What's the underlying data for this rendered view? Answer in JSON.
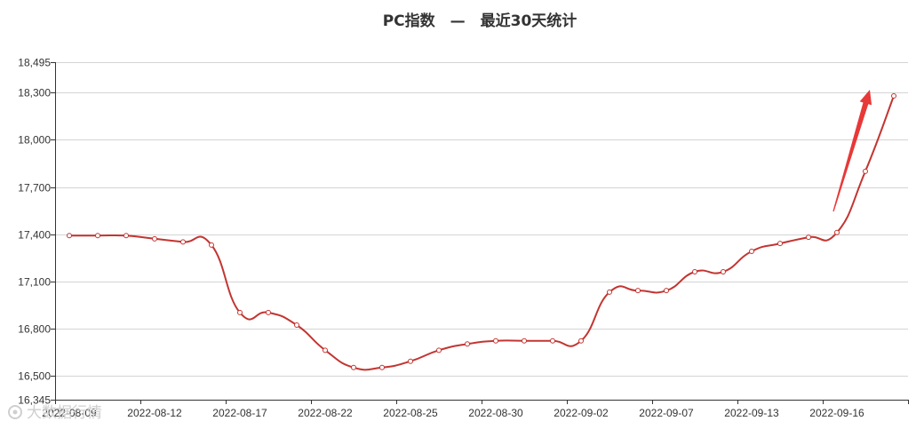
{
  "chart_data": {
    "type": "line",
    "title": "PC指数　—　最近30天统计",
    "xlabel": "",
    "ylabel": "",
    "ylim": [
      16345,
      18495
    ],
    "y_ticks": [
      16345,
      16500,
      16800,
      17100,
      17400,
      17700,
      18000,
      18300,
      18495
    ],
    "y_tick_labels": [
      "16,345",
      "16,500",
      "16,800",
      "17,100",
      "17,400",
      "17,700",
      "18,000",
      "18,300",
      "18,495"
    ],
    "x_tick_labels": [
      {
        "index": 0,
        "label": "2022-08-09"
      },
      {
        "index": 3,
        "label": "2022-08-12"
      },
      {
        "index": 6,
        "label": "2022-08-17"
      },
      {
        "index": 9,
        "label": "2022-08-22"
      },
      {
        "index": 12,
        "label": "2022-08-25"
      },
      {
        "index": 15,
        "label": "2022-08-30"
      },
      {
        "index": 18,
        "label": "2022-09-02"
      },
      {
        "index": 21,
        "label": "2022-09-07"
      },
      {
        "index": 24,
        "label": "2022-09-13"
      },
      {
        "index": 27,
        "label": "2022-09-16"
      }
    ],
    "grid": true,
    "series": [
      {
        "color": "#c23531",
        "values": [
          17390,
          17390,
          17390,
          17370,
          17350,
          17330,
          16900,
          16900,
          16820,
          16660,
          16550,
          16550,
          16590,
          16660,
          16700,
          16720,
          16720,
          16720,
          16720,
          17030,
          17040,
          17040,
          17160,
          17160,
          17290,
          17340,
          17380,
          17410,
          17800,
          18280
        ]
      }
    ],
    "annotation": {
      "type": "arrow",
      "color": "#e83838",
      "direction": "up-right"
    }
  },
  "watermark": {
    "text": "大数据行情"
  }
}
